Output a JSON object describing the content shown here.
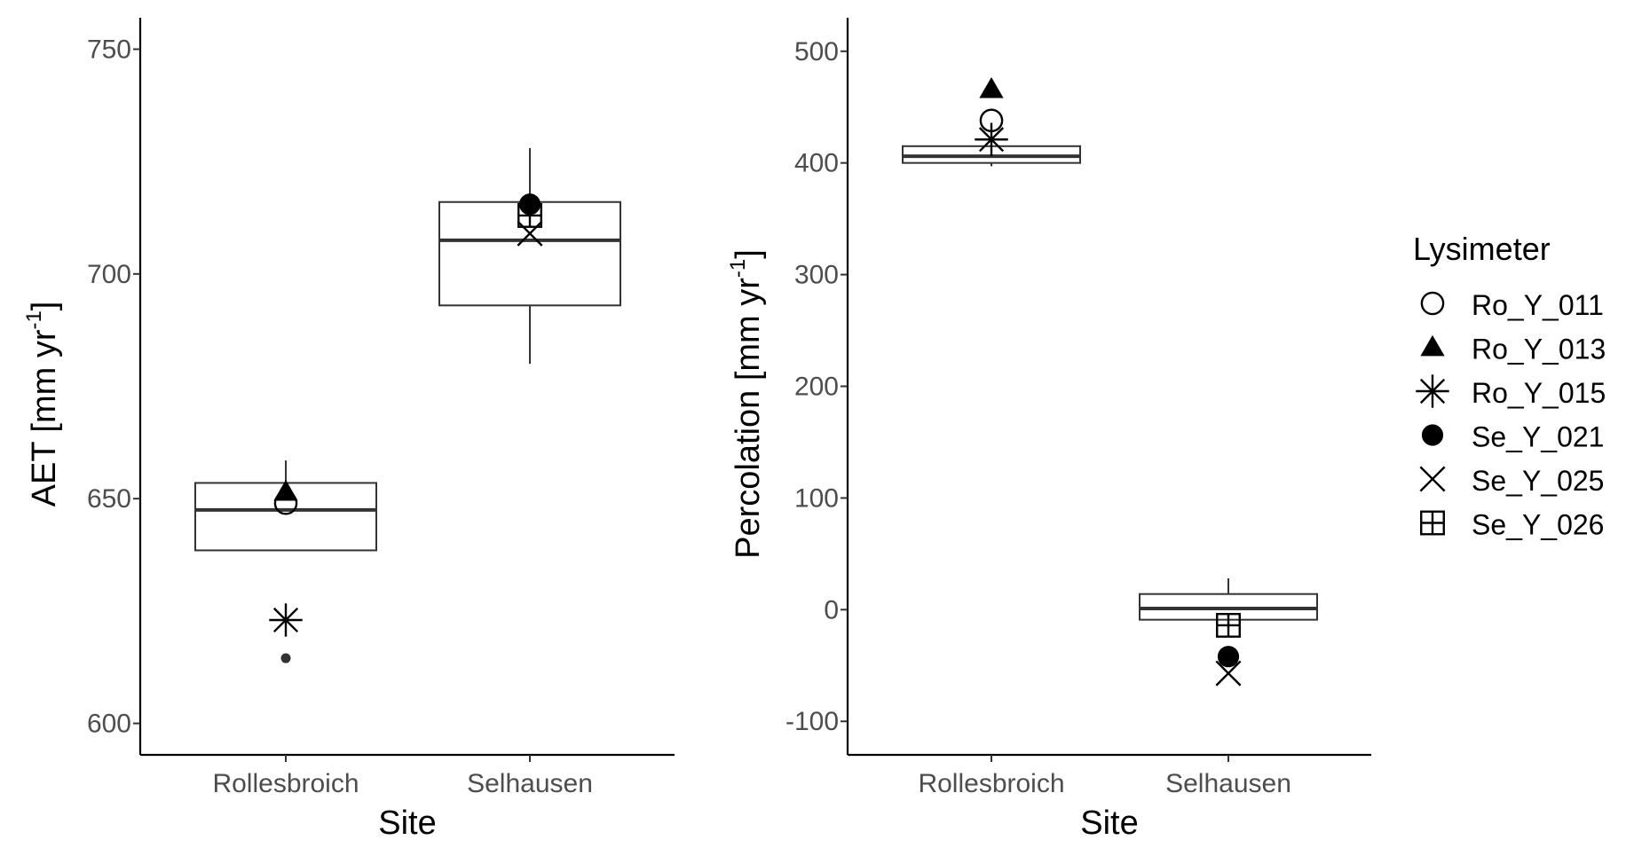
{
  "chart_data": [
    {
      "type": "box",
      "xlabel": "Site",
      "ylabel": "AET [mm yr",
      "ylabel_sup": "-1",
      "ylabel_tail": "]",
      "categories": [
        "Rollesbroich",
        "Selhausen"
      ],
      "ylim": [
        593,
        757
      ],
      "yticks": [
        600,
        650,
        700,
        750
      ],
      "boxes": [
        {
          "category": "Rollesbroich",
          "whisker_low": 638.5,
          "q1": 638.5,
          "median": 647.5,
          "q3": 653.5,
          "whisker_high": 658.5,
          "outliers": [
            614.5
          ]
        },
        {
          "category": "Selhausen",
          "whisker_low": 680,
          "q1": 693,
          "median": 707.5,
          "q3": 716,
          "whisker_high": 728,
          "outliers": []
        }
      ],
      "points": [
        {
          "lysimeter": "Ro_Y_011",
          "category": "Rollesbroich",
          "value": 649
        },
        {
          "lysimeter": "Ro_Y_013",
          "category": "Rollesbroich",
          "value": 651.5
        },
        {
          "lysimeter": "Ro_Y_015",
          "category": "Rollesbroich",
          "value": 623
        },
        {
          "lysimeter": "Se_Y_021",
          "category": "Selhausen",
          "value": 715.5
        },
        {
          "lysimeter": "Se_Y_025",
          "category": "Selhausen",
          "value": 709
        },
        {
          "lysimeter": "Se_Y_026",
          "category": "Selhausen",
          "value": 713
        }
      ]
    },
    {
      "type": "box",
      "xlabel": "Site",
      "ylabel": "Percolation [mm yr",
      "ylabel_sup": "-1",
      "ylabel_tail": "]",
      "categories": [
        "Rollesbroich",
        "Selhausen"
      ],
      "ylim": [
        -130,
        530
      ],
      "yticks": [
        -100,
        0,
        100,
        200,
        300,
        400,
        500
      ],
      "boxes": [
        {
          "category": "Rollesbroich",
          "whisker_low": 397,
          "q1": 400,
          "median": 406,
          "q3": 415,
          "whisker_high": 421,
          "outliers": []
        },
        {
          "category": "Selhausen",
          "whisker_low": -9,
          "q1": -9,
          "median": 1,
          "q3": 14,
          "whisker_high": 28,
          "outliers": []
        }
      ],
      "points": [
        {
          "lysimeter": "Ro_Y_011",
          "category": "Rollesbroich",
          "value": 438
        },
        {
          "lysimeter": "Ro_Y_013",
          "category": "Rollesbroich",
          "value": 466
        },
        {
          "lysimeter": "Ro_Y_015",
          "category": "Rollesbroich",
          "value": 421
        },
        {
          "lysimeter": "Se_Y_021",
          "category": "Selhausen",
          "value": -42
        },
        {
          "lysimeter": "Se_Y_025",
          "category": "Selhausen",
          "value": -57
        },
        {
          "lysimeter": "Se_Y_026",
          "category": "Selhausen",
          "value": -14
        }
      ]
    }
  ],
  "legend": {
    "title": "Lysimeter",
    "placement": "right",
    "items": [
      {
        "label": "Ro_Y_011",
        "shape": "open-circle-icon"
      },
      {
        "label": "Ro_Y_013",
        "shape": "filled-triangle-icon"
      },
      {
        "label": "Ro_Y_015",
        "shape": "asterisk-icon"
      },
      {
        "label": "Se_Y_021",
        "shape": "filled-circle-icon"
      },
      {
        "label": "Se_Y_025",
        "shape": "cross-icon"
      },
      {
        "label": "Se_Y_026",
        "shape": "boxed-plus-icon"
      }
    ]
  }
}
